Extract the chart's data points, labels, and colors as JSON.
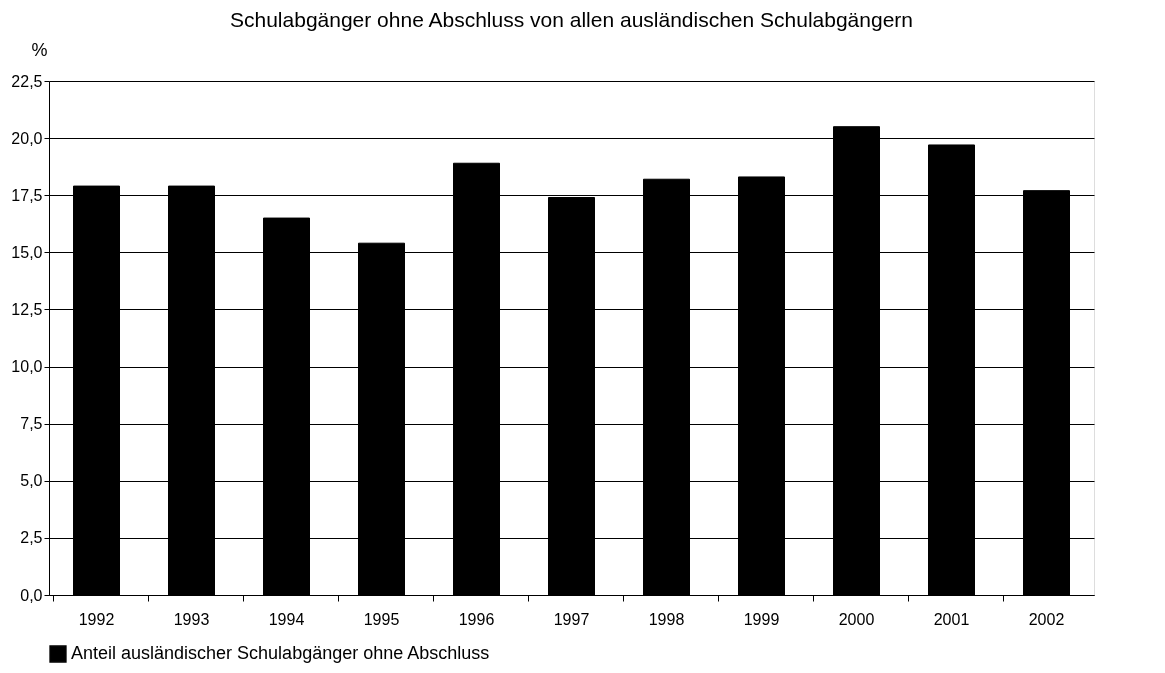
{
  "chart_data": {
    "type": "bar",
    "title": "Schulabgänger ohne Abschluss von allen ausländischen Schulabgängern",
    "ylabel": "%",
    "categories": [
      "1992",
      "1993",
      "1994",
      "1995",
      "1996",
      "1997",
      "1998",
      "1999",
      "2000",
      "2001",
      "2002"
    ],
    "series": [
      {
        "name": "Anteil ausländischer Schulabgänger ohne Abschluss",
        "color": "#000000",
        "values": [
          17.9,
          17.9,
          16.5,
          15.4,
          18.9,
          17.4,
          18.2,
          18.3,
          20.5,
          19.7,
          17.7
        ]
      }
    ],
    "ylim": [
      0,
      22.5
    ],
    "yticks": [
      {
        "value": 0,
        "label": "0,0"
      },
      {
        "value": 2.5,
        "label": "2,5"
      },
      {
        "value": 5,
        "label": "5,0"
      },
      {
        "value": 7.5,
        "label": "7,5"
      },
      {
        "value": 10,
        "label": "10,0"
      },
      {
        "value": 12.5,
        "label": "12,5"
      },
      {
        "value": 15,
        "label": "15,0"
      },
      {
        "value": 17.5,
        "label": "17,5"
      },
      {
        "value": 20,
        "label": "20,0"
      },
      {
        "value": 22.5,
        "label": "22,5"
      }
    ],
    "grid": "y",
    "legend": "bottom"
  }
}
